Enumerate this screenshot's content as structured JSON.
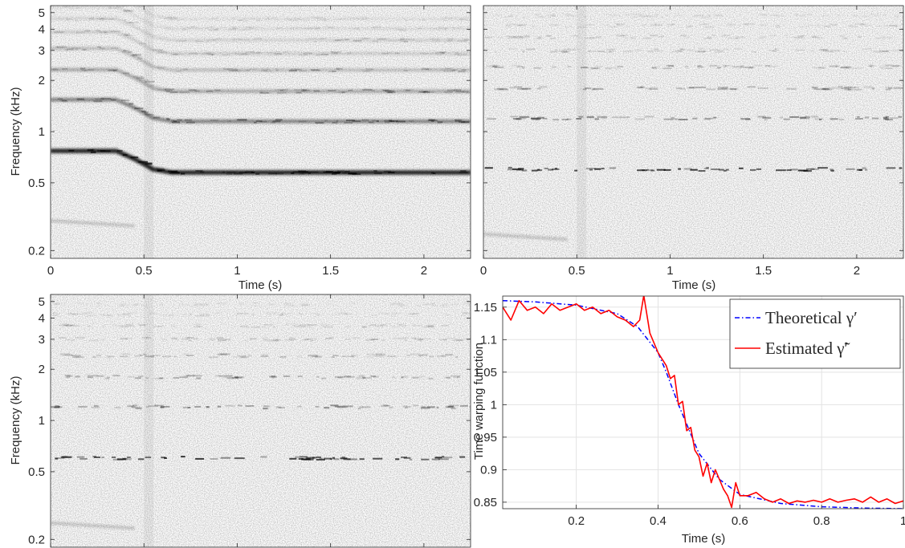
{
  "chart_data": [
    {
      "type": "heatmap",
      "panel": "top-left",
      "xlabel": "Time (s)",
      "ylabel": "Frequency (kHz)",
      "xlim": [
        0,
        2.25
      ],
      "ylim": [
        0.18,
        5.5
      ],
      "yscale": "log",
      "xticks": [
        0,
        0.5,
        1,
        1.5,
        2
      ],
      "xtick_labels": [
        "0",
        "0.5",
        "1",
        "1.5",
        "2"
      ],
      "yticks": [
        0.2,
        0.5,
        1,
        2,
        3,
        4,
        5
      ],
      "ytick_labels": [
        "0.2",
        "0.5",
        "1",
        "2",
        "3",
        "4",
        "5"
      ],
      "fundamental_khz": [
        {
          "t": 0.0,
          "f": 0.77
        },
        {
          "t": 0.35,
          "f": 0.77
        },
        {
          "t": 0.45,
          "f": 0.69
        },
        {
          "t": 0.55,
          "f": 0.6
        },
        {
          "t": 0.65,
          "f": 0.575
        },
        {
          "t": 2.25,
          "f": 0.575
        }
      ]
    },
    {
      "type": "heatmap",
      "panel": "top-right",
      "xlabel": "Time (s)",
      "xlim": [
        0,
        2.25
      ],
      "ylim": [
        0.18,
        5.5
      ],
      "yscale": "log",
      "xticks": [
        0,
        0.5,
        1,
        1.5,
        2
      ],
      "xtick_labels": [
        "0",
        "0.5",
        "1",
        "1.5",
        "2"
      ],
      "fundamental_khz": [
        {
          "t": 0.0,
          "f": 0.6
        },
        {
          "t": 2.25,
          "f": 0.6
        }
      ]
    },
    {
      "type": "heatmap",
      "panel": "bottom-left",
      "ylabel": "Frequency (kHz)",
      "xlim": [
        0,
        2.25
      ],
      "ylim": [
        0.18,
        5.5
      ],
      "yscale": "log",
      "yticks": [
        0.2,
        0.5,
        1,
        2,
        3,
        4,
        5
      ],
      "ytick_labels": [
        "0.2",
        "0.5",
        "1",
        "2",
        "3",
        "4",
        "5"
      ],
      "fundamental_khz": [
        {
          "t": 0.0,
          "f": 0.6
        },
        {
          "t": 2.25,
          "f": 0.6
        }
      ]
    },
    {
      "type": "line",
      "panel": "bottom-right",
      "xlabel": "Time (s)",
      "ylabel": "Time warping function",
      "xlim": [
        0.02,
        1.0
      ],
      "ylim": [
        0.84,
        1.167
      ],
      "grid": true,
      "legend_position": "top-right",
      "xticks": [
        0.2,
        0.4,
        0.6,
        0.8,
        1
      ],
      "xtick_labels": [
        "0.2",
        "0.4",
        "0.6",
        "0.8",
        "1"
      ],
      "yticks": [
        0.85,
        0.9,
        0.95,
        1,
        1.05,
        1.1,
        1.15
      ],
      "ytick_labels": [
        "0.85",
        "0.9",
        "0.95",
        "1",
        "1.05",
        "1.1",
        "1.15"
      ],
      "series": [
        {
          "name": "Theoretical γ′",
          "style": "dash-dot",
          "color": "#0000ff",
          "x": [
            0.02,
            0.1,
            0.2,
            0.3,
            0.35,
            0.4,
            0.42,
            0.45,
            0.48,
            0.5,
            0.55,
            0.6,
            0.7,
            0.8,
            0.9,
            1.0
          ],
          "y": [
            1.16,
            1.158,
            1.153,
            1.14,
            1.12,
            1.08,
            1.05,
            1.0,
            0.955,
            0.925,
            0.885,
            0.862,
            0.848,
            0.843,
            0.841,
            0.84
          ]
        },
        {
          "name": "Estimated γ̃′",
          "style": "solid",
          "color": "#ff0000",
          "x": [
            0.02,
            0.04,
            0.06,
            0.08,
            0.1,
            0.12,
            0.14,
            0.16,
            0.18,
            0.2,
            0.22,
            0.24,
            0.26,
            0.28,
            0.3,
            0.32,
            0.34,
            0.355,
            0.365,
            0.38,
            0.4,
            0.42,
            0.43,
            0.44,
            0.45,
            0.46,
            0.47,
            0.48,
            0.49,
            0.5,
            0.51,
            0.52,
            0.53,
            0.54,
            0.55,
            0.56,
            0.57,
            0.58,
            0.59,
            0.6,
            0.62,
            0.64,
            0.66,
            0.68,
            0.7,
            0.72,
            0.74,
            0.76,
            0.78,
            0.8,
            0.82,
            0.84,
            0.86,
            0.88,
            0.9,
            0.92,
            0.94,
            0.96,
            0.98,
            1.0
          ],
          "y": [
            1.15,
            1.13,
            1.16,
            1.145,
            1.15,
            1.14,
            1.155,
            1.145,
            1.15,
            1.155,
            1.145,
            1.15,
            1.14,
            1.145,
            1.135,
            1.13,
            1.12,
            1.13,
            1.168,
            1.11,
            1.08,
            1.06,
            1.04,
            1.045,
            1.0,
            1.005,
            0.96,
            0.965,
            0.93,
            0.92,
            0.89,
            0.91,
            0.88,
            0.9,
            0.885,
            0.87,
            0.86,
            0.842,
            0.88,
            0.86,
            0.86,
            0.865,
            0.855,
            0.85,
            0.855,
            0.848,
            0.852,
            0.85,
            0.853,
            0.85,
            0.855,
            0.85,
            0.853,
            0.855,
            0.85,
            0.858,
            0.85,
            0.855,
            0.848,
            0.852
          ]
        }
      ]
    }
  ]
}
